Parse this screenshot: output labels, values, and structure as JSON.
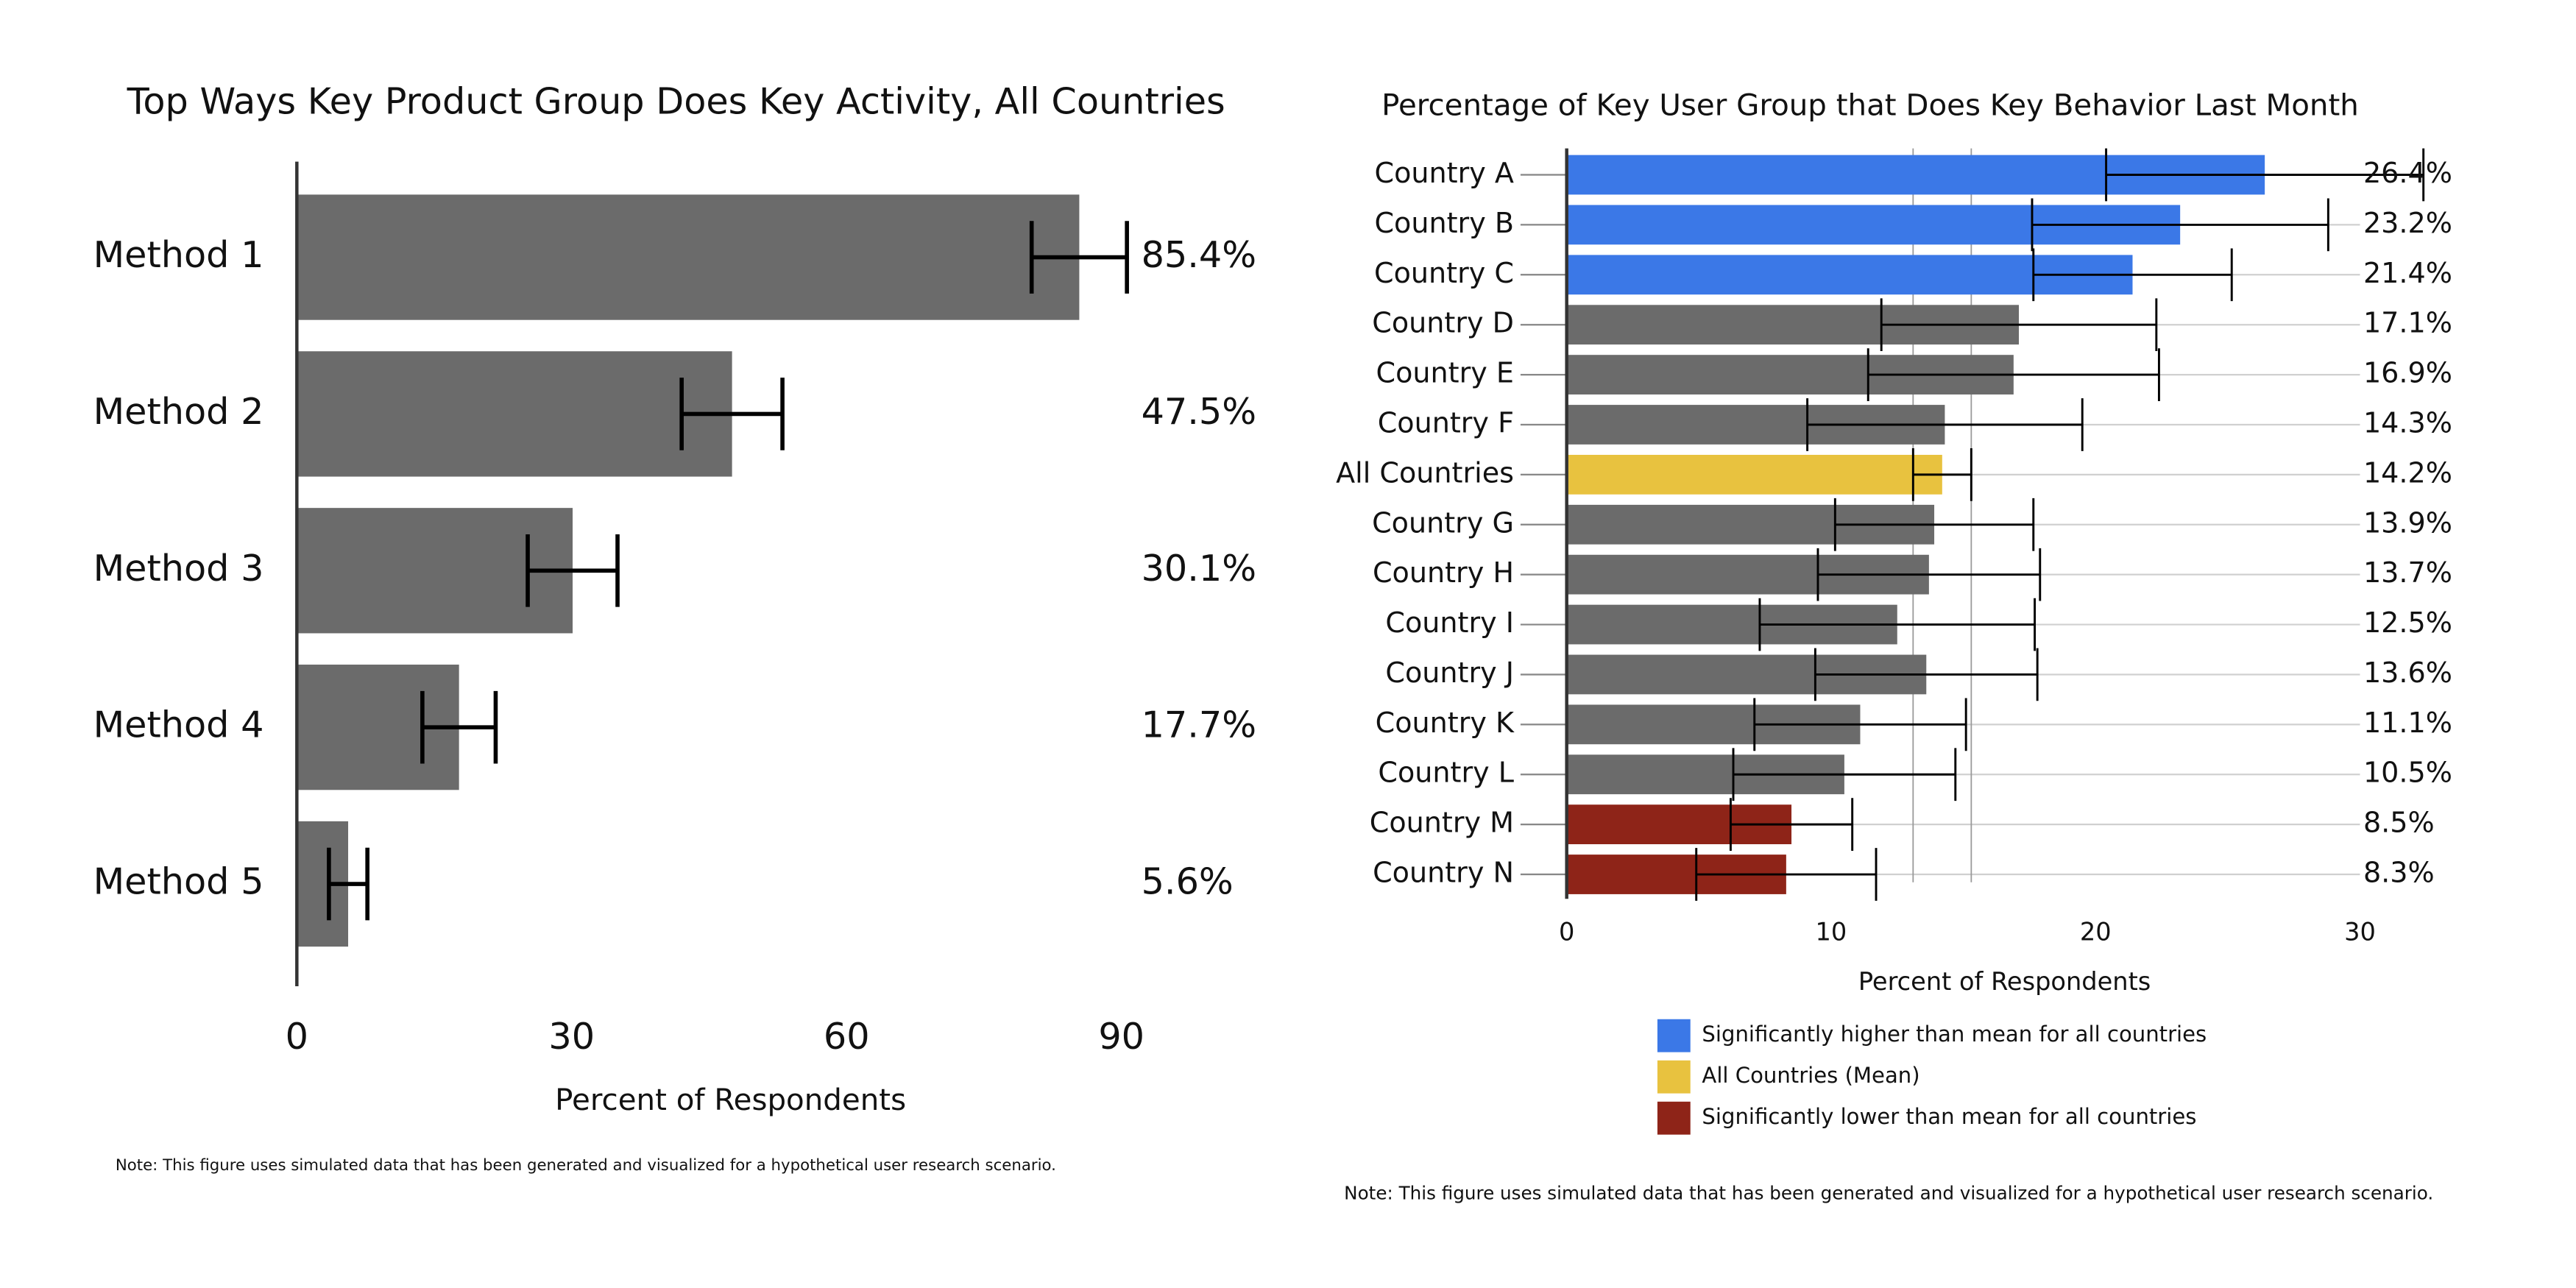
{
  "chart_data": [
    {
      "type": "bar",
      "title": "Top Ways Key Product Group Does Key Activity, All Countries",
      "categories": [
        "Method  1",
        "Method 2",
        "Method 3",
        "Method 4",
        "Method 5"
      ],
      "values": [
        85.4,
        47.5,
        30.1,
        17.7,
        5.6
      ],
      "value_labels": [
        "85.4%",
        "47.5%",
        "30.1%",
        "17.7%",
        "5.6%"
      ],
      "errors": [
        5.2,
        5.5,
        4.9,
        4.0,
        2.1
      ],
      "color": "#6b6b6b",
      "xlabel": "Percent of Respondents",
      "xlim": [
        0,
        90
      ],
      "xticks": [
        0,
        30,
        60,
        90
      ],
      "note": "Note: This figure uses simulated data that has been generated and visualized for a hypothetical user research scenario."
    },
    {
      "type": "bar",
      "title": "Percentage of Key User Group that Does Key Behavior Last Month",
      "categories": [
        "Country A",
        "Country B",
        "Country C",
        "Country D",
        "Country E",
        "Country F",
        "All Countries",
        "Country G",
        "Country H",
        "Country I",
        "Country J",
        "Country K",
        "Country L",
        "Country  M",
        "Country N"
      ],
      "values": [
        26.4,
        23.2,
        21.4,
        17.1,
        16.9,
        14.3,
        14.2,
        13.9,
        13.7,
        12.5,
        13.6,
        11.1,
        10.5,
        8.5,
        8.3
      ],
      "value_labels": [
        "26.4%",
        "23.2%",
        "21.4%",
        "17.1%",
        "16.9%",
        "14.3%",
        "14.2%",
        "13.9%",
        "13.7%",
        "12.5%",
        "13.6%",
        "11.1%",
        "10.5%",
        "8.5%",
        "8.3%"
      ],
      "errors": [
        6.0,
        5.6,
        3.75,
        5.2,
        5.5,
        5.2,
        1.1,
        3.75,
        4.2,
        5.2,
        4.2,
        4.0,
        4.2,
        2.3,
        3.4
      ],
      "colors": [
        "#3b78e7",
        "#3b78e7",
        "#3b78e7",
        "#6b6b6b",
        "#6b6b6b",
        "#6b6b6b",
        "#e8c23f",
        "#6b6b6b",
        "#6b6b6b",
        "#6b6b6b",
        "#6b6b6b",
        "#6b6b6b",
        "#6b6b6b",
        "#8e2418",
        "#8e2418"
      ],
      "xlabel": "Percent of Respondents",
      "xlim": [
        0,
        30
      ],
      "xticks": [
        0,
        10,
        20,
        30
      ],
      "grid": true,
      "legend": [
        {
          "label": "Significantly higher than mean for all countries",
          "color": "#3b78e7"
        },
        {
          "label": "All Countries (Mean)",
          "color": "#e8c23f"
        },
        {
          "label": "Significantly lower than mean for all countries",
          "color": "#8e2418"
        }
      ],
      "note": "Note: This figure uses simulated data that has been generated and visualized for a hypothetical user research scenario."
    }
  ]
}
